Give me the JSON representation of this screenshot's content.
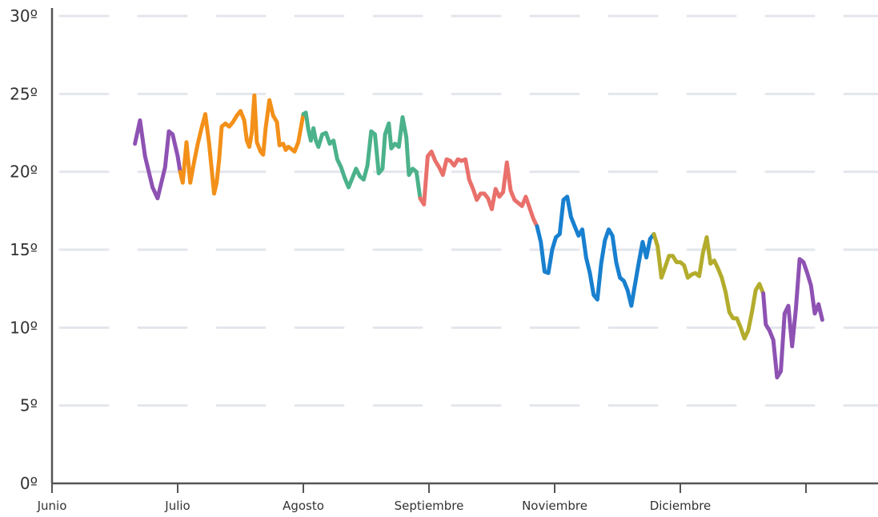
{
  "chart_data": {
    "type": "line",
    "title": "",
    "xlabel": "",
    "ylabel": "",
    "ylim": [
      0,
      30
    ],
    "xlim": [
      0,
      6.6
    ],
    "grid": true,
    "legend": "none",
    "y_ticks": [
      0,
      5,
      10,
      15,
      20,
      25,
      30
    ],
    "y_tick_labels": [
      "0º",
      "5º",
      "10º",
      "15º",
      "20º",
      "25º",
      "30º"
    ],
    "x_ticks": [
      0,
      1,
      2,
      3,
      4,
      5,
      6
    ],
    "x_tick_labels": [
      "Junio",
      "Julio",
      "Agosto",
      "Septiembre",
      "Noviembre",
      "Diciembre",
      ""
    ],
    "series": [
      {
        "color": "#8e52b3",
        "points": [
          [
            0.66,
            21.8
          ],
          [
            0.7,
            23.3
          ],
          [
            0.74,
            21.0
          ],
          [
            0.8,
            19.0
          ],
          [
            0.84,
            18.3
          ],
          [
            0.9,
            20.3
          ],
          [
            0.93,
            22.6
          ],
          [
            0.96,
            22.4
          ],
          [
            1.0,
            21.0
          ],
          [
            1.02,
            20.0
          ]
        ]
      },
      {
        "color": "#f39019",
        "points": [
          [
            1.02,
            20.0
          ],
          [
            1.04,
            19.3
          ],
          [
            1.07,
            21.9
          ],
          [
            1.1,
            19.3
          ],
          [
            1.13,
            20.6
          ],
          [
            1.16,
            21.8
          ],
          [
            1.19,
            22.8
          ],
          [
            1.22,
            23.7
          ],
          [
            1.25,
            21.8
          ],
          [
            1.29,
            18.6
          ],
          [
            1.31,
            19.3
          ],
          [
            1.33,
            20.8
          ],
          [
            1.35,
            22.9
          ],
          [
            1.38,
            23.1
          ],
          [
            1.41,
            22.9
          ],
          [
            1.44,
            23.2
          ],
          [
            1.47,
            23.6
          ],
          [
            1.5,
            23.9
          ],
          [
            1.53,
            23.3
          ],
          [
            1.55,
            22.0
          ],
          [
            1.57,
            21.6
          ],
          [
            1.59,
            22.5
          ],
          [
            1.61,
            24.9
          ],
          [
            1.63,
            21.9
          ],
          [
            1.66,
            21.3
          ],
          [
            1.68,
            21.1
          ],
          [
            1.7,
            22.8
          ],
          [
            1.73,
            24.6
          ],
          [
            1.76,
            23.6
          ],
          [
            1.79,
            23.2
          ],
          [
            1.81,
            21.7
          ],
          [
            1.84,
            21.8
          ],
          [
            1.86,
            21.4
          ],
          [
            1.88,
            21.6
          ],
          [
            1.9,
            21.5
          ],
          [
            1.93,
            21.3
          ],
          [
            1.96,
            21.9
          ],
          [
            2.0,
            23.7
          ]
        ]
      },
      {
        "color": "#4bb28b",
        "points": [
          [
            2.0,
            23.7
          ],
          [
            2.02,
            23.8
          ],
          [
            2.04,
            22.7
          ],
          [
            2.06,
            22.0
          ],
          [
            2.08,
            22.8
          ],
          [
            2.1,
            22.0
          ],
          [
            2.12,
            21.6
          ],
          [
            2.15,
            22.4
          ],
          [
            2.18,
            22.5
          ],
          [
            2.21,
            21.8
          ],
          [
            2.24,
            22.0
          ],
          [
            2.27,
            20.8
          ],
          [
            2.3,
            20.3
          ],
          [
            2.33,
            19.6
          ],
          [
            2.36,
            19.0
          ],
          [
            2.39,
            19.6
          ],
          [
            2.42,
            20.2
          ],
          [
            2.45,
            19.7
          ],
          [
            2.48,
            19.5
          ],
          [
            2.51,
            20.4
          ],
          [
            2.54,
            22.6
          ],
          [
            2.57,
            22.4
          ],
          [
            2.6,
            19.9
          ],
          [
            2.63,
            20.2
          ],
          [
            2.65,
            22.4
          ],
          [
            2.68,
            23.1
          ],
          [
            2.7,
            21.5
          ],
          [
            2.73,
            21.8
          ],
          [
            2.76,
            21.6
          ],
          [
            2.79,
            23.5
          ],
          [
            2.82,
            22.2
          ],
          [
            2.84,
            19.8
          ],
          [
            2.87,
            20.2
          ],
          [
            2.9,
            20.0
          ],
          [
            2.93,
            18.3
          ]
        ]
      },
      {
        "color": "#e9706b",
        "points": [
          [
            2.93,
            18.3
          ],
          [
            2.96,
            17.9
          ],
          [
            2.99,
            21.0
          ],
          [
            3.02,
            21.3
          ],
          [
            3.05,
            20.7
          ],
          [
            3.08,
            20.3
          ],
          [
            3.11,
            19.8
          ],
          [
            3.14,
            20.8
          ],
          [
            3.17,
            20.7
          ],
          [
            3.2,
            20.4
          ],
          [
            3.23,
            20.8
          ],
          [
            3.26,
            20.7
          ],
          [
            3.29,
            20.8
          ],
          [
            3.32,
            19.5
          ],
          [
            3.35,
            18.9
          ],
          [
            3.38,
            18.2
          ],
          [
            3.41,
            18.6
          ],
          [
            3.44,
            18.6
          ],
          [
            3.47,
            18.3
          ],
          [
            3.5,
            17.6
          ],
          [
            3.53,
            18.9
          ],
          [
            3.56,
            18.4
          ],
          [
            3.59,
            18.7
          ],
          [
            3.62,
            20.6
          ],
          [
            3.65,
            18.8
          ],
          [
            3.68,
            18.2
          ],
          [
            3.71,
            18.0
          ],
          [
            3.74,
            17.8
          ],
          [
            3.77,
            18.4
          ],
          [
            3.8,
            17.7
          ],
          [
            3.83,
            17.0
          ],
          [
            3.86,
            16.5
          ]
        ]
      },
      {
        "color": "#1880cf",
        "points": [
          [
            3.86,
            16.5
          ],
          [
            3.89,
            15.5
          ],
          [
            3.92,
            13.6
          ],
          [
            3.95,
            13.5
          ],
          [
            3.98,
            15.0
          ],
          [
            4.01,
            15.8
          ],
          [
            4.04,
            16.0
          ],
          [
            4.07,
            18.2
          ],
          [
            4.1,
            18.4
          ],
          [
            4.13,
            17.1
          ],
          [
            4.16,
            16.5
          ],
          [
            4.19,
            15.9
          ],
          [
            4.22,
            16.3
          ],
          [
            4.25,
            14.5
          ],
          [
            4.28,
            13.5
          ],
          [
            4.31,
            12.1
          ],
          [
            4.34,
            11.8
          ],
          [
            4.37,
            14.1
          ],
          [
            4.4,
            15.6
          ],
          [
            4.43,
            16.3
          ],
          [
            4.46,
            15.9
          ],
          [
            4.49,
            14.2
          ],
          [
            4.52,
            13.2
          ],
          [
            4.55,
            13.0
          ],
          [
            4.58,
            12.4
          ],
          [
            4.61,
            11.4
          ],
          [
            4.64,
            12.8
          ],
          [
            4.67,
            14.2
          ],
          [
            4.7,
            15.5
          ],
          [
            4.73,
            14.5
          ],
          [
            4.76,
            15.7
          ],
          [
            4.79,
            16.0
          ]
        ]
      },
      {
        "color": "#b3ac2c",
        "points": [
          [
            4.79,
            16.0
          ],
          [
            4.82,
            15.2
          ],
          [
            4.85,
            13.2
          ],
          [
            4.88,
            13.9
          ],
          [
            4.91,
            14.6
          ],
          [
            4.94,
            14.6
          ],
          [
            4.97,
            14.2
          ],
          [
            5.0,
            14.2
          ],
          [
            5.03,
            14.0
          ],
          [
            5.06,
            13.2
          ],
          [
            5.09,
            13.4
          ],
          [
            5.12,
            13.5
          ],
          [
            5.15,
            13.3
          ],
          [
            5.18,
            14.8
          ],
          [
            5.21,
            15.8
          ],
          [
            5.24,
            14.1
          ],
          [
            5.27,
            14.3
          ],
          [
            5.3,
            13.8
          ],
          [
            5.33,
            13.2
          ],
          [
            5.36,
            12.3
          ],
          [
            5.39,
            11.0
          ],
          [
            5.42,
            10.6
          ],
          [
            5.45,
            10.6
          ],
          [
            5.48,
            10.0
          ],
          [
            5.51,
            9.3
          ],
          [
            5.54,
            9.8
          ],
          [
            5.57,
            11.0
          ],
          [
            5.6,
            12.4
          ],
          [
            5.63,
            12.8
          ],
          [
            5.66,
            12.2
          ]
        ]
      },
      {
        "color": "#8e52b3",
        "points": [
          [
            5.66,
            12.2
          ],
          [
            5.68,
            10.2
          ],
          [
            5.71,
            9.8
          ],
          [
            5.74,
            9.2
          ],
          [
            5.77,
            6.8
          ],
          [
            5.8,
            7.2
          ],
          [
            5.83,
            10.9
          ],
          [
            5.86,
            11.4
          ],
          [
            5.89,
            8.8
          ],
          [
            5.92,
            11.2
          ],
          [
            5.95,
            14.4
          ],
          [
            5.98,
            14.2
          ],
          [
            6.01,
            13.5
          ],
          [
            6.04,
            12.7
          ],
          [
            6.07,
            10.9
          ],
          [
            6.1,
            11.5
          ],
          [
            6.13,
            10.5
          ]
        ]
      }
    ]
  }
}
